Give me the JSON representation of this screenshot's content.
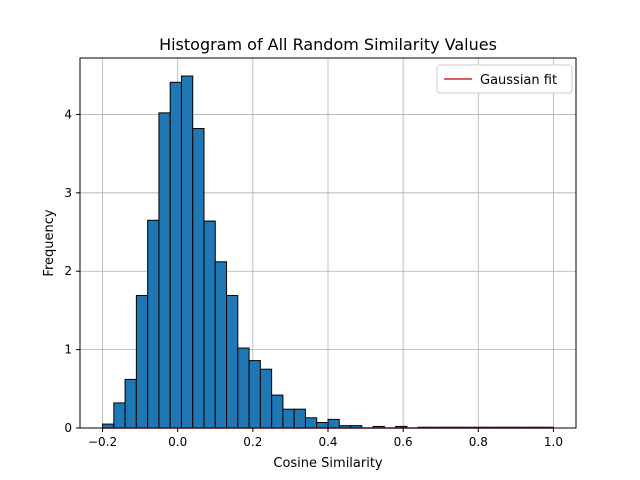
{
  "chart_data": {
    "type": "bar",
    "title": "Histogram of All Random Similarity Values",
    "xlabel": "Cosine Similarity",
    "ylabel": "Frequency",
    "xlim": [
      -0.26,
      1.06
    ],
    "ylim": [
      0,
      4.72
    ],
    "xticks": [
      -0.2,
      0.0,
      0.2,
      0.4,
      0.6,
      0.8,
      1.0
    ],
    "xtick_labels": [
      "−0.2",
      "0.0",
      "0.2",
      "0.4",
      "0.6",
      "0.8",
      "1.0"
    ],
    "yticks": [
      0,
      1,
      2,
      3,
      4
    ],
    "ytick_labels": [
      "0",
      "1",
      "2",
      "3",
      "4"
    ],
    "grid": true,
    "legend": {
      "location": "top-right",
      "entries": [
        "Gaussian fit"
      ]
    },
    "bar_color": "#1f77b4",
    "bar_edge_color": "#000000",
    "fit_color": "#d62728",
    "bins": {
      "start": -0.2,
      "width": 0.03,
      "values": [
        0.05,
        0.32,
        0.62,
        1.69,
        2.65,
        4.02,
        4.41,
        4.49,
        3.82,
        2.64,
        2.12,
        1.69,
        1.02,
        0.86,
        0.75,
        0.42,
        0.24,
        0.24,
        0.13,
        0.07,
        0.11,
        0.03,
        0.03,
        0.0,
        0.02,
        0.0,
        0.02,
        0.0,
        0.01,
        0.01,
        0.01,
        0.01,
        0.01,
        0.01,
        0.01,
        0.01,
        0.01,
        0.01,
        0.01,
        0.01
      ]
    },
    "series": [
      {
        "name": "Gaussian fit",
        "type": "line",
        "x": [
          -0.2,
          1.0
        ],
        "y": [
          0.0,
          0.0
        ]
      }
    ]
  }
}
